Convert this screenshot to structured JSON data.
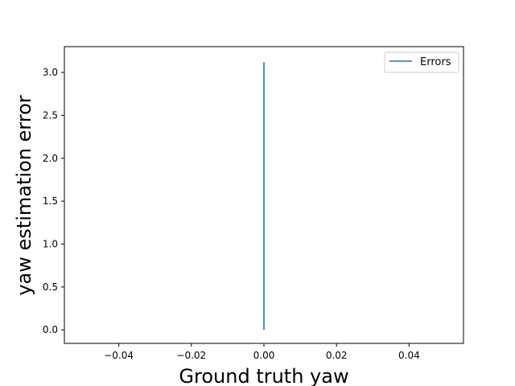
{
  "chart_data": {
    "type": "line",
    "title": "",
    "xlabel": "Ground truth yaw",
    "ylabel": "yaw estimation error",
    "xlim": [
      -0.055,
      0.055
    ],
    "ylim": [
      -0.157,
      3.3
    ],
    "x_ticks": [
      -0.04,
      -0.02,
      0.0,
      0.02,
      0.04
    ],
    "x_tick_labels": [
      "−0.04",
      "−0.02",
      "0.00",
      "0.02",
      "0.04"
    ],
    "y_ticks": [
      0.0,
      0.5,
      1.0,
      1.5,
      2.0,
      2.5,
      3.0
    ],
    "y_tick_labels": [
      "0.0",
      "0.5",
      "1.0",
      "1.5",
      "2.0",
      "2.5",
      "3.0"
    ],
    "grid": false,
    "legend_position": "top-right",
    "series": [
      {
        "name": "Errors",
        "color": "#1f77b4",
        "x": [
          0.0,
          0.0
        ],
        "y": [
          0.0,
          3.12
        ]
      }
    ]
  }
}
